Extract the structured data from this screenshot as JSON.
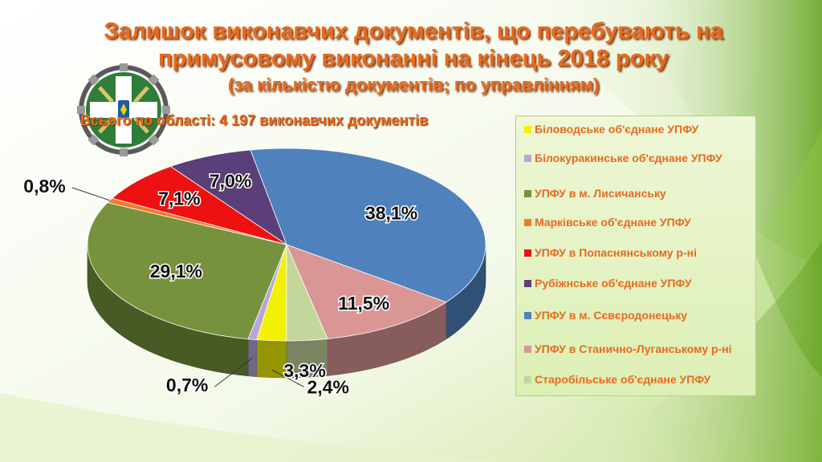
{
  "title": {
    "line1": "Залишок виконавчих документів, що перебувають на",
    "line2": "примусовому виконанні на кінець 2018 року",
    "line3": "(за кількістю документів;  по управлінням)"
  },
  "total_text": "Всього по області: 4 197 виконавчих документів",
  "logo": {
    "icon": "pension-fund-emblem-icon"
  },
  "chart_data": {
    "type": "pie",
    "title": "Залишок виконавчих документів, що перебувають на примусовому виконанні на кінець 2018 року",
    "legend_position": "right",
    "slices": [
      {
        "name": "Біловодське об'єднане УПФУ",
        "value": 2.4,
        "label": "2,4%",
        "color": "#f2f200"
      },
      {
        "name": "Білокуракинське об'єднане УПФУ",
        "value": 0.7,
        "label": "0,7%",
        "color": "#b7a6d8"
      },
      {
        "name": "УПФУ в м. Лисичанську",
        "value": 29.1,
        "label": "29,1%",
        "color": "#76923c"
      },
      {
        "name": "Марківське об'єднане УПФУ",
        "value": 0.8,
        "label": "0,8%",
        "color": "#f07c28"
      },
      {
        "name": "УПФУ в Попаснянському р-ні",
        "value": 7.1,
        "label": "7,1%",
        "color": "#ee1111"
      },
      {
        "name": "Рубіжнське об'єднане УПФУ",
        "value": 7.0,
        "label": "7,0%",
        "color": "#5b3f78"
      },
      {
        "name": "УПФУ в м. Сєвєродонецьку",
        "value": 38.1,
        "label": "38,1%",
        "color": "#4f81bd"
      },
      {
        "name": "УПФУ в Станично-Луганському р-ні",
        "value": 11.5,
        "label": "11,5%",
        "color": "#d99694"
      },
      {
        "name": "Старобільське об'єднане УПФУ",
        "value": 3.3,
        "label": "3,3%",
        "color": "#c3d69b"
      }
    ]
  }
}
